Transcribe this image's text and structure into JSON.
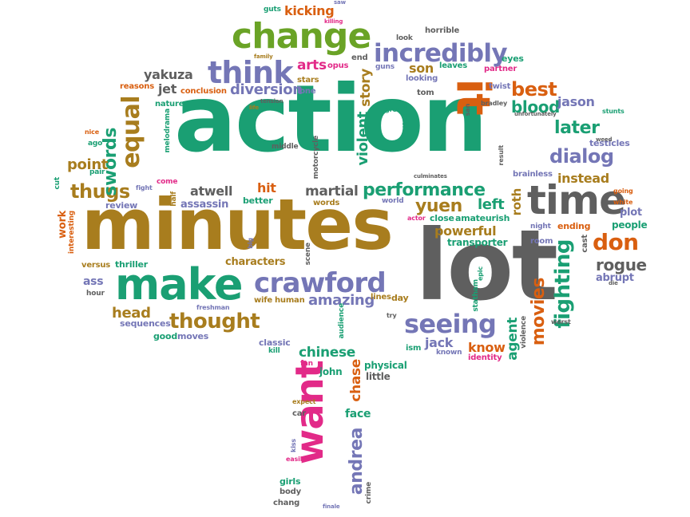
{
  "colors": {
    "green": "#1a9f73",
    "brown": "#a87d1e",
    "gray": "#5f5f5f",
    "purple": "#7476b6",
    "orange": "#d95f10",
    "pink": "#e22a88",
    "olive": "#6aa326"
  },
  "words": [
    {
      "text": "action",
      "color": "green"
    },
    {
      "text": "minutes",
      "color": "brown"
    },
    {
      "text": "lot",
      "color": "gray"
    },
    {
      "text": "make",
      "color": "green"
    },
    {
      "text": "crawford",
      "color": "purple"
    },
    {
      "text": "time",
      "color": "gray"
    },
    {
      "text": "change",
      "color": "olive"
    },
    {
      "text": "want",
      "color": "pink"
    },
    {
      "text": "think",
      "color": "purple"
    },
    {
      "text": "incredibly",
      "color": "purple"
    },
    {
      "text": "seeing",
      "color": "purple"
    },
    {
      "text": "equal",
      "color": "brown"
    },
    {
      "text": "it",
      "color": "orange"
    },
    {
      "text": "performance",
      "color": "green"
    },
    {
      "text": "dialog",
      "color": "purple"
    },
    {
      "text": "thought",
      "color": "brown"
    },
    {
      "text": "best",
      "color": "orange"
    },
    {
      "text": "later",
      "color": "green"
    },
    {
      "text": "fighting",
      "color": "green"
    },
    {
      "text": "thugs",
      "color": "brown"
    },
    {
      "text": "swords",
      "color": "green"
    },
    {
      "text": "don",
      "color": "orange"
    },
    {
      "text": "andrea",
      "color": "purple"
    },
    {
      "text": "movies",
      "color": "orange"
    },
    {
      "text": "yuen",
      "color": "brown"
    },
    {
      "text": "martial",
      "color": "gray"
    },
    {
      "text": "diversion",
      "color": "purple"
    },
    {
      "text": "point",
      "color": "brown"
    },
    {
      "text": "rogue",
      "color": "gray"
    },
    {
      "text": "blood",
      "color": "green"
    },
    {
      "text": "chase",
      "color": "orange"
    },
    {
      "text": "violent",
      "color": "green"
    },
    {
      "text": "agent",
      "color": "green"
    },
    {
      "text": "amazing",
      "color": "purple"
    },
    {
      "text": "atwell",
      "color": "gray"
    },
    {
      "text": "head",
      "color": "brown"
    },
    {
      "text": "chinese",
      "color": "green"
    },
    {
      "text": "yakuza",
      "color": "gray"
    },
    {
      "text": "powerful",
      "color": "brown"
    },
    {
      "text": "jason",
      "color": "purple"
    },
    {
      "text": "instead",
      "color": "brown"
    },
    {
      "text": "story",
      "color": "brown"
    },
    {
      "text": "arts",
      "color": "pink"
    },
    {
      "text": "know",
      "color": "orange"
    },
    {
      "text": "left",
      "color": "green"
    },
    {
      "text": "jack",
      "color": "purple"
    },
    {
      "text": "jet",
      "color": "gray"
    },
    {
      "text": "hit",
      "color": "orange"
    },
    {
      "text": "son",
      "color": "brown"
    },
    {
      "text": "ass",
      "color": "purple"
    },
    {
      "text": "face",
      "color": "green"
    },
    {
      "text": "kicking",
      "color": "orange"
    },
    {
      "text": "work",
      "color": "orange"
    },
    {
      "text": "roth",
      "color": "brown"
    },
    {
      "text": "abrupt",
      "color": "purple"
    },
    {
      "text": "characters",
      "color": "brown"
    },
    {
      "text": "plot",
      "color": "purple"
    },
    {
      "text": "people",
      "color": "green"
    },
    {
      "text": "assassin",
      "color": "purple"
    },
    {
      "text": "review",
      "color": "purple"
    },
    {
      "text": "john",
      "color": "green"
    },
    {
      "text": "physical",
      "color": "green"
    },
    {
      "text": "little",
      "color": "gray"
    },
    {
      "text": "transporter",
      "color": "green"
    },
    {
      "text": "thriller",
      "color": "green"
    },
    {
      "text": "versus",
      "color": "brown"
    },
    {
      "text": "sequences",
      "color": "purple"
    },
    {
      "text": "good",
      "color": "green"
    },
    {
      "text": "moves",
      "color": "purple"
    },
    {
      "text": "classic",
      "color": "purple"
    },
    {
      "text": "better",
      "color": "green"
    },
    {
      "text": "words",
      "color": "brown"
    },
    {
      "text": "human",
      "color": "brown"
    },
    {
      "text": "wife",
      "color": "brown"
    },
    {
      "text": "lines",
      "color": "brown"
    },
    {
      "text": "day",
      "color": "brown"
    },
    {
      "text": "close",
      "color": "green"
    },
    {
      "text": "amateurish",
      "color": "green"
    },
    {
      "text": "ending",
      "color": "orange"
    },
    {
      "text": "cast",
      "color": "gray"
    },
    {
      "text": "room",
      "color": "purple"
    },
    {
      "text": "testicles",
      "color": "purple"
    },
    {
      "text": "brainless",
      "color": "purple"
    },
    {
      "text": "nature",
      "color": "green"
    },
    {
      "text": "conclusion",
      "color": "orange"
    },
    {
      "text": "reasons",
      "color": "orange"
    },
    {
      "text": "lone",
      "color": "purple"
    },
    {
      "text": "stars",
      "color": "brown"
    },
    {
      "text": "leaves",
      "color": "green"
    },
    {
      "text": "looking",
      "color": "purple"
    },
    {
      "text": "eyes",
      "color": "green"
    },
    {
      "text": "partner",
      "color": "pink"
    },
    {
      "text": "twist",
      "color": "purple"
    },
    {
      "text": "tom",
      "color": "gray"
    },
    {
      "text": "end",
      "color": "gray"
    },
    {
      "text": "opus",
      "color": "pink"
    },
    {
      "text": "horrible",
      "color": "gray"
    },
    {
      "text": "look",
      "color": "gray"
    },
    {
      "text": "guns",
      "color": "purple"
    },
    {
      "text": "melodrama",
      "color": "green"
    },
    {
      "text": "middle",
      "color": "gray"
    },
    {
      "text": "motorcycle",
      "color": "gray"
    },
    {
      "text": "scene",
      "color": "gray"
    },
    {
      "text": "audience",
      "color": "green"
    },
    {
      "text": "crime",
      "color": "gray"
    },
    {
      "text": "girls",
      "color": "green"
    },
    {
      "text": "body",
      "color": "gray"
    },
    {
      "text": "chang",
      "color": "gray"
    },
    {
      "text": "car",
      "color": "gray"
    },
    {
      "text": "fan",
      "color": "pink"
    },
    {
      "text": "kill",
      "color": "green"
    },
    {
      "text": "ism",
      "color": "green"
    },
    {
      "text": "known",
      "color": "purple"
    },
    {
      "text": "identity",
      "color": "pink"
    },
    {
      "text": "statham",
      "color": "green"
    },
    {
      "text": "violence",
      "color": "gray"
    },
    {
      "text": "come",
      "color": "pink"
    },
    {
      "text": "half",
      "color": "brown"
    },
    {
      "text": "ago",
      "color": "green"
    },
    {
      "text": "nice",
      "color": "orange"
    },
    {
      "text": "pair",
      "color": "green"
    },
    {
      "text": "cut",
      "color": "green"
    },
    {
      "text": "fight",
      "color": "purple"
    },
    {
      "text": "big",
      "color": "purple"
    },
    {
      "text": "world",
      "color": "purple"
    },
    {
      "text": "actor",
      "color": "pink"
    },
    {
      "text": "interesting",
      "color": "orange"
    },
    {
      "text": "hour",
      "color": "gray"
    },
    {
      "text": "freshman",
      "color": "purple"
    },
    {
      "text": "try",
      "color": "gray"
    },
    {
      "text": "worst",
      "color": "gray"
    },
    {
      "text": "night",
      "color": "purple"
    },
    {
      "text": "white",
      "color": "orange"
    },
    {
      "text": "going",
      "color": "orange"
    },
    {
      "text": "stunts",
      "color": "green"
    },
    {
      "text": "weed",
      "color": "gray"
    },
    {
      "text": "culminates",
      "color": "gray"
    },
    {
      "text": "result",
      "color": "gray"
    },
    {
      "text": "epic",
      "color": "green"
    },
    {
      "text": "die",
      "color": "gray"
    },
    {
      "text": "bradley",
      "color": "gray"
    },
    {
      "text": "unfortunately",
      "color": "gray"
    },
    {
      "text": "theater",
      "color": "green"
    },
    {
      "text": "great",
      "color": "green"
    },
    {
      "text": "san",
      "color": "gray"
    },
    {
      "text": "life",
      "color": "brown"
    },
    {
      "text": "tension",
      "color": "gray"
    },
    {
      "text": "family",
      "color": "brown"
    },
    {
      "text": "guts",
      "color": "green"
    },
    {
      "text": "saw",
      "color": "purple"
    },
    {
      "text": "killing",
      "color": "pink"
    },
    {
      "text": "expect",
      "color": "brown"
    },
    {
      "text": "kiss",
      "color": "purple"
    },
    {
      "text": "easily",
      "color": "pink"
    },
    {
      "text": "finale",
      "color": "purple"
    }
  ]
}
